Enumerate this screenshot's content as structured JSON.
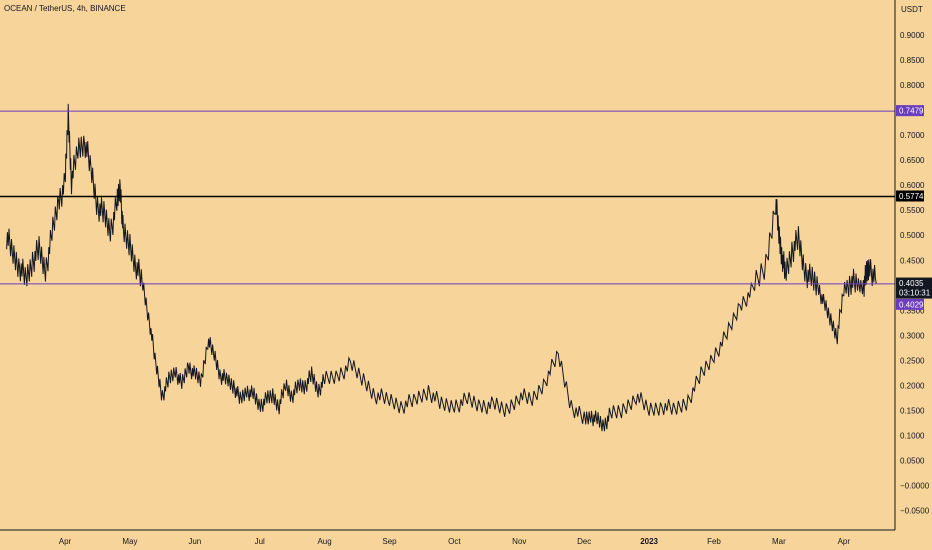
{
  "header": {
    "title": "OCEAN / TetherUS, 4h, BINANCE"
  },
  "colors": {
    "background": "#f7d49a",
    "price_line": "#131722",
    "support_line": "#6a3cbf",
    "resistance_line": "#000000",
    "current_price_badge": "#131722",
    "support_badge": "#6a3cbf"
  },
  "chart_data": {
    "type": "line",
    "title": "OCEAN / TetherUS, 4h, BINANCE",
    "xlabel": "",
    "ylabel": "USDT",
    "ylim": [
      -0.08,
      1.0
    ],
    "grid": false,
    "y_ticks": [
      "0.9000",
      "0.8500",
      "0.8000",
      "0.7000",
      "0.6500",
      "0.6000",
      "0.5500",
      "0.5000",
      "0.4500",
      "0.3500",
      "0.3000",
      "0.2500",
      "0.2000",
      "0.1500",
      "0.1000",
      "0.0500",
      "−0.0000",
      "−0.0500"
    ],
    "y_tick_values": [
      0.9,
      0.85,
      0.8,
      0.7,
      0.65,
      0.6,
      0.55,
      0.5,
      0.45,
      0.35,
      0.3,
      0.25,
      0.2,
      0.15,
      0.1,
      0.05,
      0.0,
      -0.05
    ],
    "x_ticks": [
      {
        "label": "Apr",
        "month": 1,
        "bold": false
      },
      {
        "label": "May",
        "month": 2,
        "bold": false
      },
      {
        "label": "Jun",
        "month": 3,
        "bold": false
      },
      {
        "label": "Jul",
        "month": 4,
        "bold": false
      },
      {
        "label": "Aug",
        "month": 5,
        "bold": false
      },
      {
        "label": "Sep",
        "month": 6,
        "bold": false
      },
      {
        "label": "Oct",
        "month": 7,
        "bold": false
      },
      {
        "label": "Nov",
        "month": 8,
        "bold": false
      },
      {
        "label": "Dec",
        "month": 9,
        "bold": false
      },
      {
        "label": "2023",
        "month": 10,
        "bold": true
      },
      {
        "label": "Feb",
        "month": 11,
        "bold": false
      },
      {
        "label": "Mar",
        "month": 12,
        "bold": false
      },
      {
        "label": "Apr",
        "month": 13,
        "bold": false
      }
    ],
    "series": [
      {
        "x_months": [
          -0.9,
          -0.8,
          -0.7,
          -0.6,
          -0.5,
          -0.4,
          -0.3,
          -0.2,
          -0.1,
          0.0,
          0.05,
          0.1,
          0.2,
          0.3,
          0.4,
          0.5,
          0.6,
          0.7,
          0.8,
          0.85,
          0.9,
          1.0,
          1.1,
          1.2,
          1.3,
          1.4,
          1.5,
          1.6,
          1.7,
          1.8,
          1.9,
          2.0,
          2.1,
          2.2,
          2.3,
          2.4,
          2.5,
          2.6,
          2.7,
          2.8,
          2.9,
          3.0,
          3.1,
          3.2,
          3.3,
          3.4,
          3.5,
          3.6,
          3.7,
          3.8,
          3.9,
          4.0,
          4.2,
          4.4,
          4.6,
          4.8,
          5.0,
          5.2,
          5.4,
          5.6,
          5.8,
          6.0,
          6.2,
          6.4,
          6.6,
          6.8,
          7.0,
          7.2,
          7.4,
          7.6,
          7.8,
          8.0,
          8.1,
          8.2,
          8.3,
          8.4,
          8.6,
          8.8,
          9.0,
          9.2,
          9.4,
          9.6,
          9.8,
          10.0,
          10.2,
          10.4,
          10.6,
          10.8,
          10.95,
          11.0,
          11.05,
          11.1,
          11.2,
          11.3,
          11.4,
          11.5,
          11.6,
          11.7,
          11.8,
          11.9,
          12.0,
          12.1,
          12.2,
          12.3,
          12.35,
          12.4,
          12.5
        ],
        "y": [
          0.5,
          0.46,
          0.44,
          0.41,
          0.45,
          0.47,
          0.43,
          0.5,
          0.57,
          0.6,
          0.74,
          0.61,
          0.67,
          0.69,
          0.63,
          0.56,
          0.54,
          0.51,
          0.56,
          0.6,
          0.5,
          0.48,
          0.44,
          0.4,
          0.33,
          0.24,
          0.18,
          0.21,
          0.23,
          0.2,
          0.24,
          0.22,
          0.21,
          0.29,
          0.26,
          0.22,
          0.21,
          0.2,
          0.17,
          0.19,
          0.18,
          0.16,
          0.17,
          0.18,
          0.16,
          0.2,
          0.18,
          0.2,
          0.2,
          0.22,
          0.19,
          0.21,
          0.22,
          0.24,
          0.21,
          0.18,
          0.17,
          0.16,
          0.17,
          0.19,
          0.16,
          0.16,
          0.17,
          0.16,
          0.16,
          0.15,
          0.18,
          0.17,
          0.21,
          0.26,
          0.16,
          0.13,
          0.14,
          0.13,
          0.12,
          0.14,
          0.15,
          0.18,
          0.15,
          0.16,
          0.15,
          0.17,
          0.22,
          0.26,
          0.3,
          0.36,
          0.39,
          0.44,
          0.57,
          0.5,
          0.46,
          0.42,
          0.47,
          0.49,
          0.43,
          0.41,
          0.4,
          0.36,
          0.33,
          0.3,
          0.39,
          0.41,
          0.4,
          0.4,
          0.42,
          0.44,
          0.4035
        ]
      }
    ],
    "horizontal_lines": [
      {
        "price": 0.7479,
        "label": "0.7479",
        "style": "support"
      },
      {
        "price": 0.5774,
        "label": "0.5774",
        "style": "resistance"
      },
      {
        "price": 0.4029,
        "label": "0.4029",
        "style": "support"
      }
    ],
    "last_price": {
      "label": "0.4035",
      "countdown": "03:10:31"
    }
  }
}
